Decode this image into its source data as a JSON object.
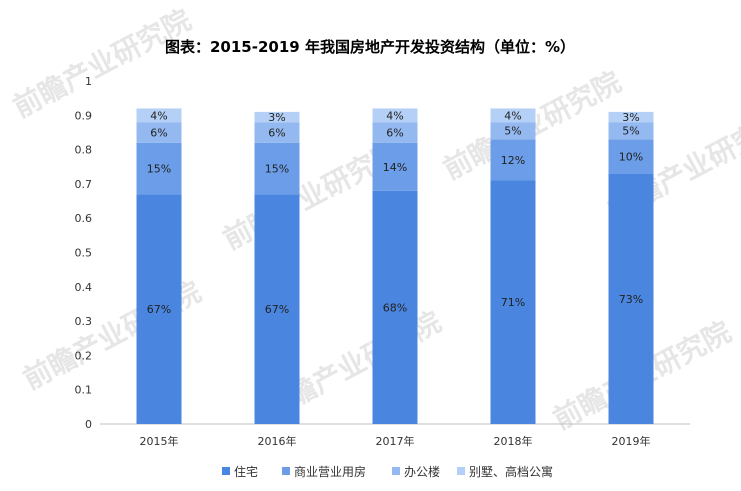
{
  "chart_data": {
    "type": "bar",
    "stacked": true,
    "title": "图表：2015-2019 年我国房地产开发投资结构（单位：%）",
    "categories": [
      "2015年",
      "2016年",
      "2017年",
      "2018年",
      "2019年"
    ],
    "series": [
      {
        "name": "住宅",
        "values": [
          0.67,
          0.67,
          0.68,
          0.71,
          0.73
        ],
        "labels": [
          "67%",
          "67%",
          "68%",
          "71%",
          "73%"
        ],
        "color": "#4a86e0"
      },
      {
        "name": "商业营业用房",
        "values": [
          0.15,
          0.15,
          0.14,
          0.12,
          0.1
        ],
        "labels": [
          "15%",
          "15%",
          "14%",
          "12%",
          "10%"
        ],
        "color": "#6b9de8"
      },
      {
        "name": "办公楼",
        "values": [
          0.06,
          0.06,
          0.06,
          0.05,
          0.05
        ],
        "labels": [
          "6%",
          "6%",
          "6%",
          "5%",
          "5%"
        ],
        "color": "#93b9f0"
      },
      {
        "name": "别墅、高档公寓",
        "values": [
          0.04,
          0.03,
          0.04,
          0.04,
          0.03
        ],
        "labels": [
          "4%",
          "3%",
          "4%",
          "4%",
          "3%"
        ],
        "color": "#b5d0f6"
      }
    ],
    "yticks": [
      "0",
      "0.1",
      "0.2",
      "0.3",
      "0.4",
      "0.5",
      "0.6",
      "0.7",
      "0.8",
      "0.9",
      "1"
    ],
    "ylim": [
      0,
      1
    ],
    "grid": false,
    "legend": "bottom"
  },
  "watermark": {
    "text": "前瞻产业研究院",
    "color": "#e6e6e6"
  }
}
